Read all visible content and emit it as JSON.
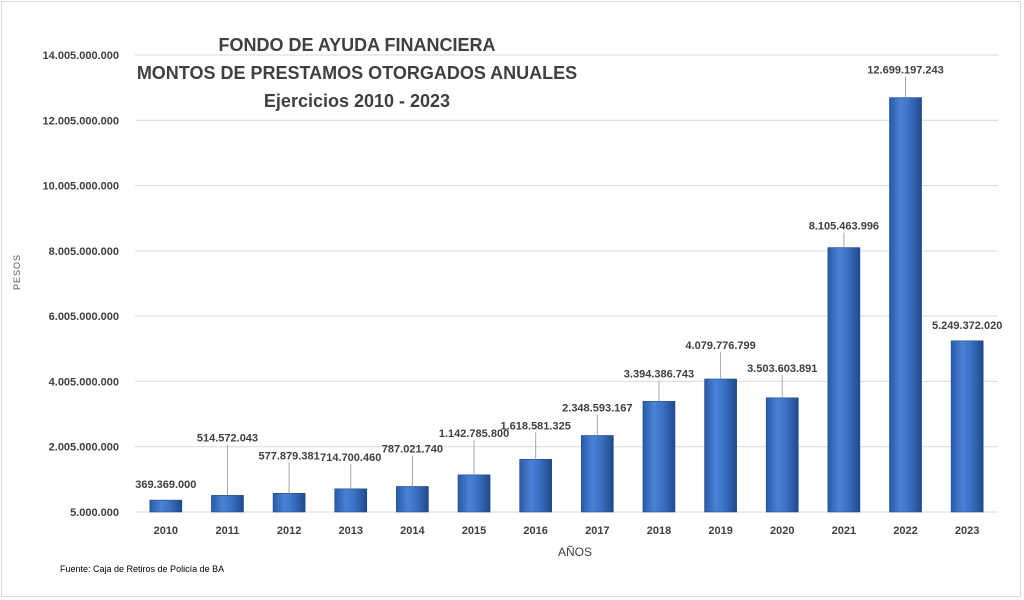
{
  "chart_data": {
    "type": "bar",
    "title": [
      "FONDO DE AYUDA FINANCIERA",
      "MONTOS DE PRESTAMOS OTORGADOS ANUALES",
      "Ejercicios 2010 - 2023"
    ],
    "xlabel": "AÑOS",
    "ylabel": "PESOS",
    "ylim": [
      5000000,
      14005000000
    ],
    "yticks": [
      "5.000.000",
      "2.005.000.000",
      "4.005.000.000",
      "6.005.000.000",
      "8.005.000.000",
      "10.005.000.000",
      "12.005.000.000",
      "14.005.000.000"
    ],
    "grid": true,
    "legend": "none",
    "bar_color": "#3a6fc0",
    "categories": [
      "2010",
      "2011",
      "2012",
      "2013",
      "2014",
      "2015",
      "2016",
      "2017",
      "2018",
      "2019",
      "2020",
      "2021",
      "2022",
      "2023"
    ],
    "values": [
      369369000,
      514572043,
      577879381,
      714700460,
      787021740,
      1142785800,
      1618581325,
      2348593167,
      3394386743,
      4079776799,
      3503603891,
      8105463996,
      12699197243,
      5249372020
    ],
    "data_labels": [
      "369.369.000",
      "514.572.043",
      "577.879.381",
      "714.700.460",
      "787.021.740",
      "1.142.785.800",
      "1.618.581.325",
      "2.348.593.167",
      "3.394.386.743",
      "4.079.776.799",
      "3.503.603.891",
      "8.105.463.996",
      "12.699.197.243",
      "5.249.372.020"
    ]
  },
  "source": "Fuente: Caja de Retiros de Policía de BA"
}
